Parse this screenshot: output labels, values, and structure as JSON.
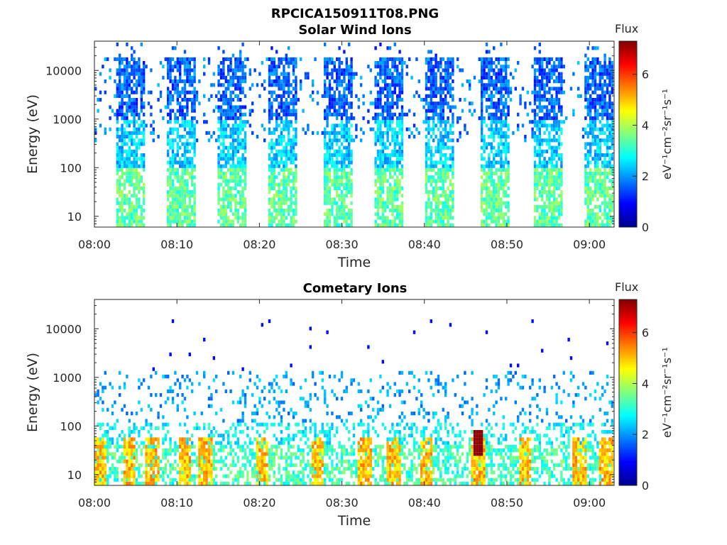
{
  "figure": {
    "title": "RPCICA150911T08.PNG"
  },
  "chart_data": [
    {
      "type": "heatmap",
      "title": "Solar Wind Ions",
      "xlabel": "Time",
      "ylabel": "Energy (eV)",
      "x_ticks": [
        "08:00",
        "08:10",
        "08:20",
        "08:30",
        "08:40",
        "08:50",
        "09:00"
      ],
      "xlim_minutes": [
        0,
        63
      ],
      "y_scale": "log",
      "y_ticks": [
        "10",
        "100",
        "1000",
        "10000"
      ],
      "ylim": [
        6,
        40000
      ],
      "colorbar": {
        "label": "Flux",
        "units": "eV⁻¹cm⁻²sr⁻¹s⁻¹",
        "range": [
          0,
          7.3
        ],
        "ticks": [
          "0",
          "2",
          "4",
          "6"
        ]
      },
      "pattern": {
        "bursts_start_minutes": [
          2.5,
          8.8,
          15.0,
          21.0,
          27.8,
          34.0,
          40.0,
          46.8,
          53.2,
          59.5
        ],
        "burst_width_minutes": 3.5,
        "flux_range_high_energy": [
          1.0,
          2.2
        ],
        "flux_range_low_energy": [
          2.8,
          4.0
        ]
      }
    },
    {
      "type": "heatmap",
      "title": "Cometary Ions",
      "xlabel": "Time",
      "ylabel": "Energy (eV)",
      "x_ticks": [
        "08:00",
        "08:10",
        "08:20",
        "08:30",
        "08:40",
        "08:50",
        "09:00"
      ],
      "xlim_minutes": [
        0,
        63
      ],
      "y_scale": "log",
      "y_ticks": [
        "10",
        "100",
        "1000",
        "10000"
      ],
      "ylim": [
        6,
        40000
      ],
      "colorbar": {
        "label": "Flux",
        "units": "eV⁻¹cm⁻²sr⁻¹s⁻¹",
        "range": [
          0,
          7.3
        ],
        "ticks": [
          "0",
          "2",
          "4",
          "6"
        ]
      },
      "pattern": {
        "hot_spots_minutes": [
          0.8,
          4.3,
          7.0,
          11.0,
          13.5,
          20.3,
          27.0,
          32.8,
          36.3,
          40.2,
          46.5,
          52.2,
          58.8,
          62.0
        ],
        "peak_flux": 7.2,
        "peak_time_minutes": 46.5,
        "peak_energy_eV": 40
      }
    }
  ]
}
